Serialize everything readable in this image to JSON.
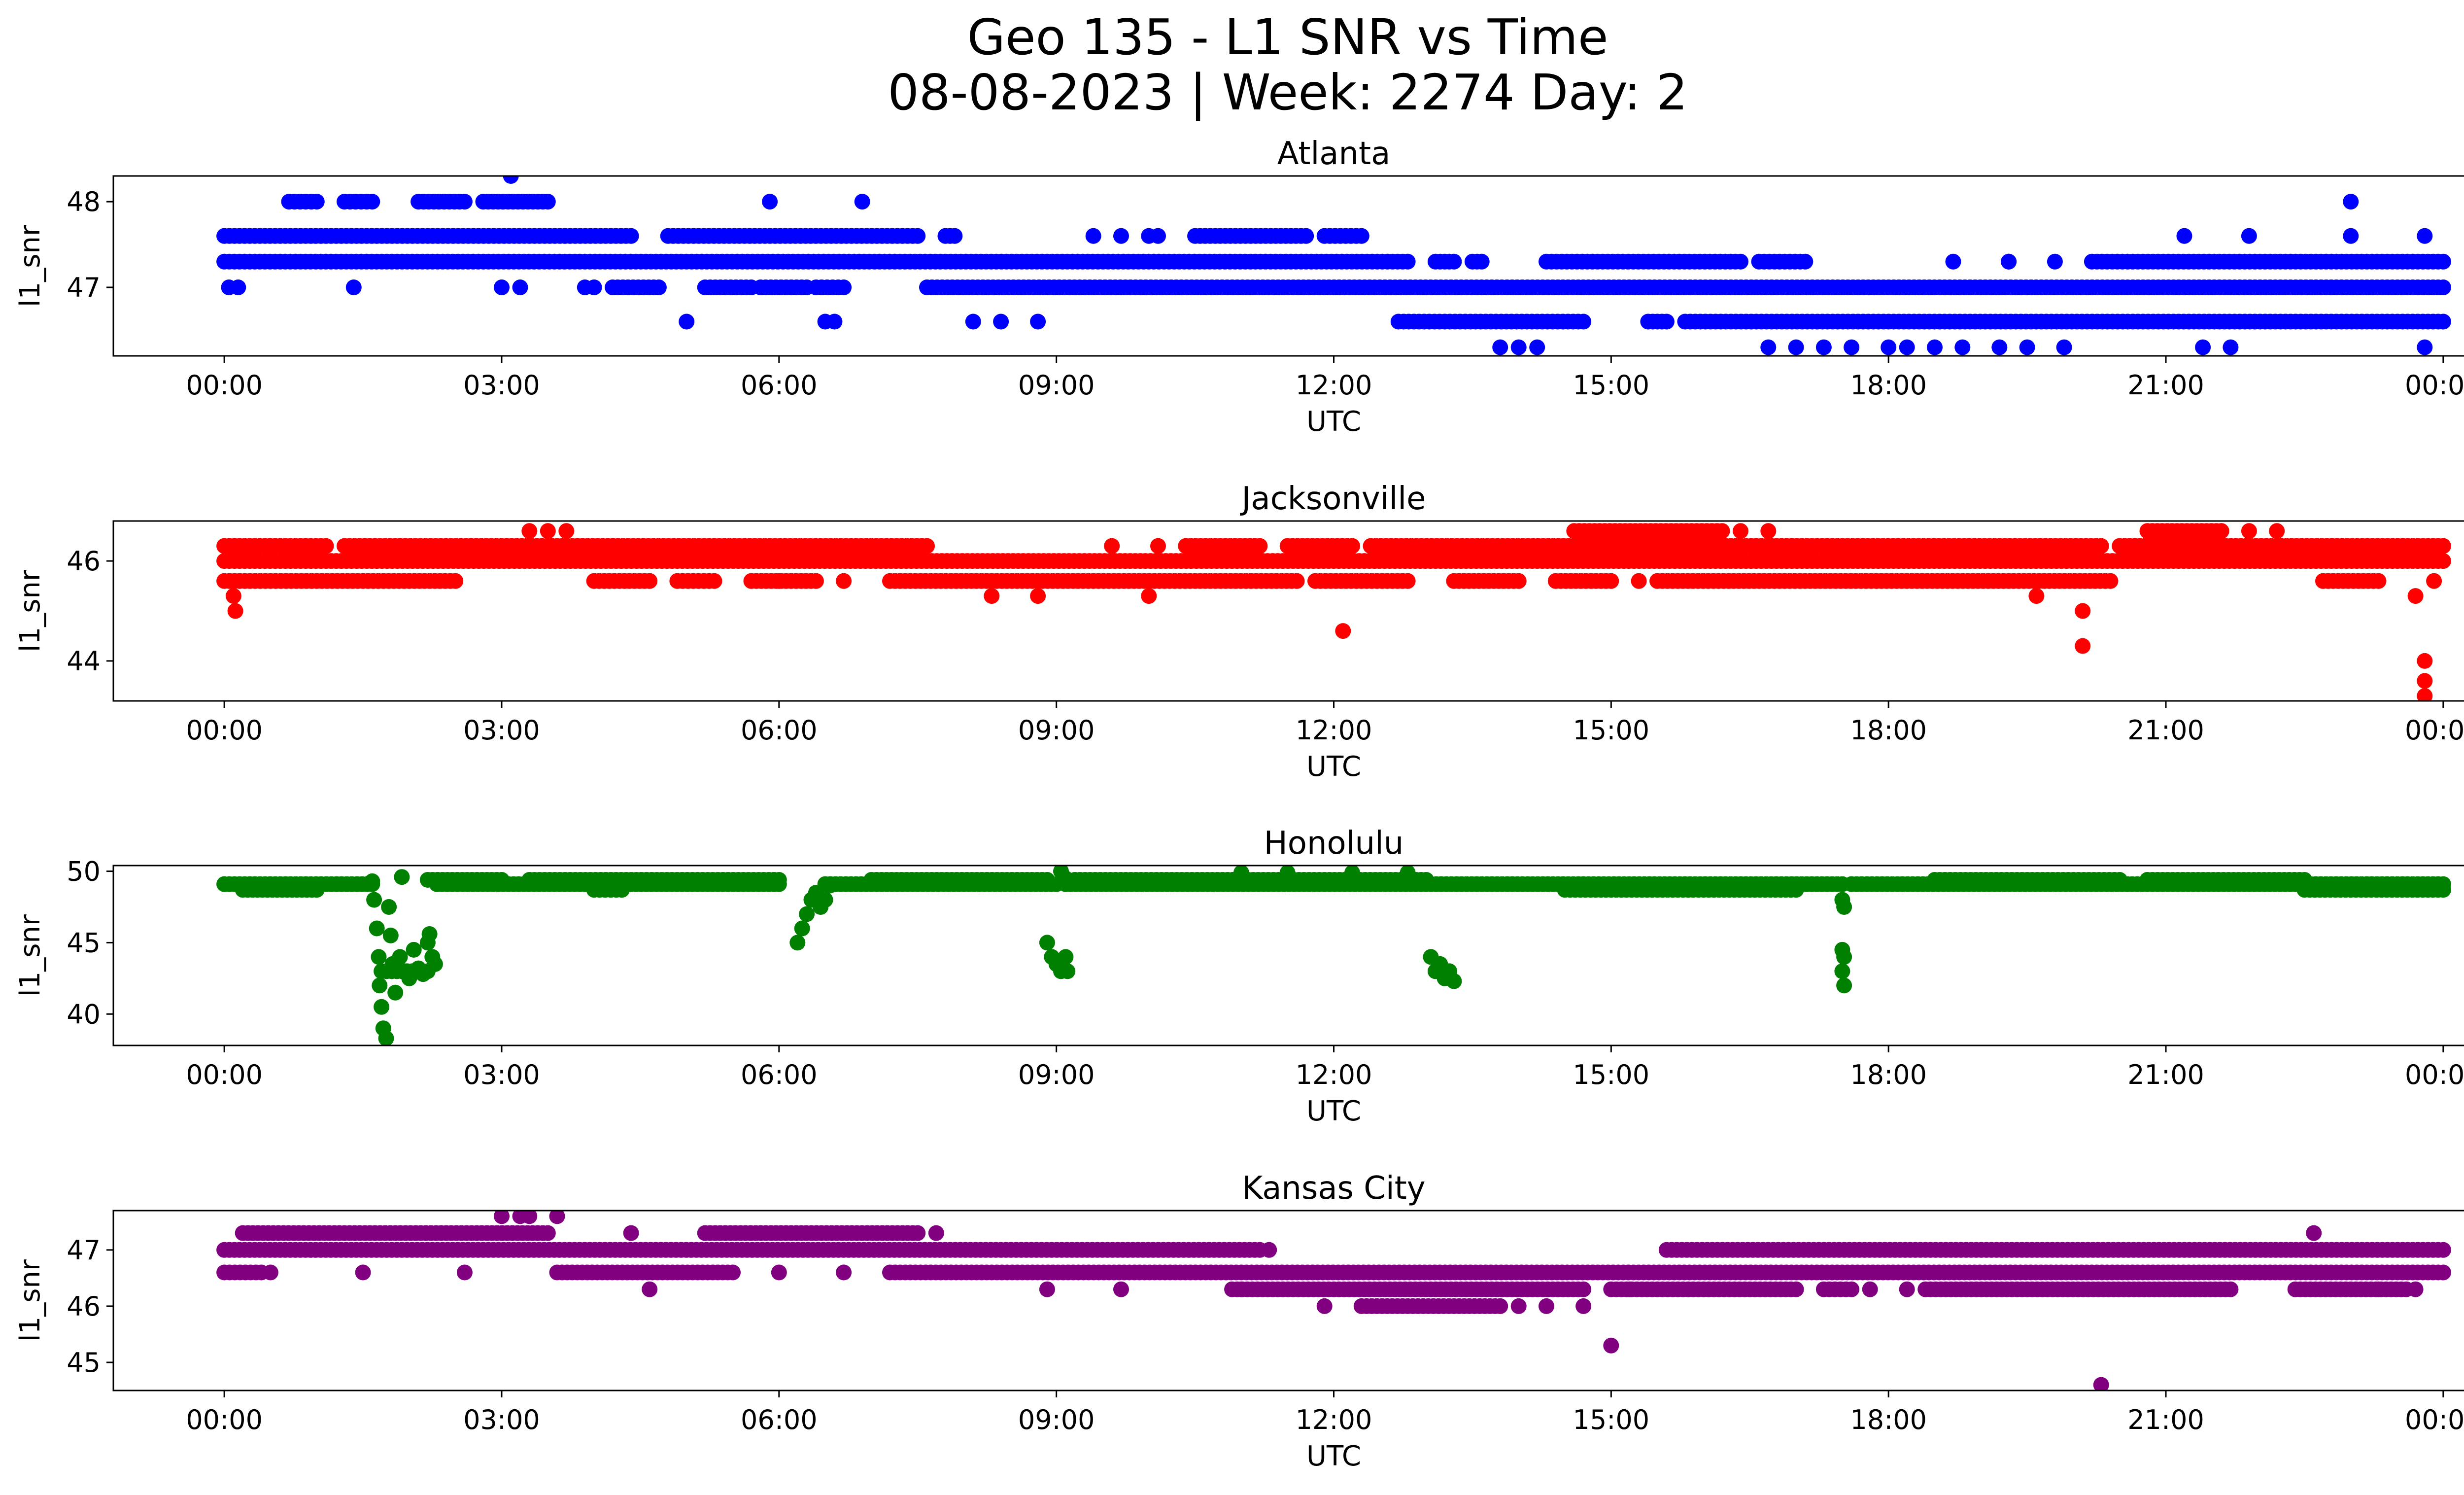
{
  "chart_data": {
    "type": "scatter",
    "title_line1": "Geo 135 - L1 SNR vs Time",
    "title_line2": "08-08-2023 | Week: 2274 Day: 2",
    "xlabel": "UTC",
    "ylabel": "l1_snr",
    "x_ticks": [
      "00:00",
      "03:00",
      "06:00",
      "09:00",
      "12:00",
      "15:00",
      "18:00",
      "21:00",
      "00:00"
    ],
    "xlim_hours": [
      -1.2,
      25.2
    ],
    "grid": false,
    "subplots": [
      {
        "name": "Atlanta",
        "color": "#0000ff",
        "ylim": [
          46.2,
          48.3
        ],
        "yticks": [
          47,
          48
        ],
        "bands": [
          {
            "y": 47.3,
            "segments": [
              [
                0,
                12.8
              ],
              [
                13.1,
                13.3
              ],
              [
                13.5,
                13.6
              ],
              [
                14.3,
                16.4
              ],
              [
                16.6,
                17.1
              ],
              [
                19.3,
                19.3
              ],
              [
                20.2,
                24
              ]
            ]
          },
          {
            "y": 47.6,
            "segments": [
              [
                0,
                4.4
              ],
              [
                4.8,
                7.5
              ],
              [
                7.8,
                7.9
              ],
              [
                10.5,
                11.7
              ],
              [
                11.9,
                12.3
              ]
            ]
          },
          {
            "y": 47.0,
            "segments": [
              [
                4.2,
                4.7
              ],
              [
                5.2,
                5.7
              ],
              [
                5.8,
                6.3
              ],
              [
                6.4,
                6.7
              ],
              [
                7.6,
                24
              ]
            ]
          },
          {
            "y": 46.6,
            "segments": [
              [
                12.7,
                14.7
              ],
              [
                15.4,
                15.6
              ],
              [
                15.8,
                24
              ]
            ]
          },
          {
            "y": 48.0,
            "segments": [
              [
                0.7,
                1.0
              ],
              [
                1.3,
                1.6
              ],
              [
                2.1,
                2.6
              ],
              [
                2.8,
                3.5
              ]
            ]
          }
        ],
        "points": [
          [
            0.05,
            47.0
          ],
          [
            0.15,
            47.0
          ],
          [
            1.4,
            47.0
          ],
          [
            3.0,
            47.0
          ],
          [
            3.2,
            47.0
          ],
          [
            3.9,
            47.0
          ],
          [
            4.0,
            47.0
          ],
          [
            3.1,
            48.3
          ],
          [
            5.9,
            48.0
          ],
          [
            6.9,
            48.0
          ],
          [
            9.4,
            47.6
          ],
          [
            9.7,
            47.6
          ],
          [
            10.0,
            47.6
          ],
          [
            10.1,
            47.6
          ],
          [
            5.0,
            46.6
          ],
          [
            6.5,
            46.6
          ],
          [
            6.6,
            46.6
          ],
          [
            8.1,
            46.6
          ],
          [
            8.4,
            46.6
          ],
          [
            8.8,
            46.6
          ],
          [
            13.8,
            46.3
          ],
          [
            14.0,
            46.3
          ],
          [
            14.2,
            46.3
          ],
          [
            16.7,
            46.3
          ],
          [
            17.0,
            46.3
          ],
          [
            17.3,
            46.3
          ],
          [
            17.6,
            46.3
          ],
          [
            18.0,
            46.3
          ],
          [
            18.2,
            46.3
          ],
          [
            18.5,
            46.3
          ],
          [
            18.8,
            46.3
          ],
          [
            19.2,
            46.3
          ],
          [
            19.5,
            46.3
          ],
          [
            19.9,
            46.3
          ],
          [
            21.4,
            46.3
          ],
          [
            21.7,
            46.3
          ],
          [
            23.8,
            46.3
          ],
          [
            18.7,
            47.3
          ],
          [
            19.8,
            47.3
          ],
          [
            21.2,
            47.6
          ],
          [
            21.9,
            47.6
          ],
          [
            23.0,
            48.0
          ],
          [
            23.0,
            47.6
          ],
          [
            23.8,
            47.6
          ]
        ]
      },
      {
        "name": "Jacksonville",
        "color": "#ff0000",
        "ylim": [
          43.2,
          46.8
        ],
        "yticks": [
          44,
          46
        ],
        "bands": [
          {
            "y": 46.0,
            "segments": [
              [
                0,
                24
              ]
            ]
          },
          {
            "y": 46.3,
            "segments": [
              [
                0,
                1.1
              ],
              [
                1.3,
                7.6
              ],
              [
                10.4,
                11.2
              ],
              [
                11.5,
                12.2
              ],
              [
                12.4,
                20.3
              ],
              [
                20.5,
                24
              ]
            ]
          },
          {
            "y": 45.6,
            "segments": [
              [
                0,
                2.5
              ],
              [
                4.0,
                4.6
              ],
              [
                4.9,
                5.3
              ],
              [
                5.7,
                6.4
              ],
              [
                7.2,
                11.6
              ],
              [
                11.8,
                12.8
              ],
              [
                13.3,
                14.0
              ],
              [
                14.4,
                15.0
              ],
              [
                15.5,
                20.4
              ],
              [
                22.7,
                23.3
              ]
            ]
          },
          {
            "y": 46.6,
            "segments": [
              [
                14.6,
                16.2
              ],
              [
                20.8,
                21.6
              ]
            ]
          }
        ],
        "points": [
          [
            0.1,
            45.3
          ],
          [
            0.12,
            45.0
          ],
          [
            3.3,
            46.6
          ],
          [
            3.5,
            46.6
          ],
          [
            3.7,
            46.6
          ],
          [
            16.4,
            46.6
          ],
          [
            16.7,
            46.6
          ],
          [
            21.6,
            46.6
          ],
          [
            21.9,
            46.6
          ],
          [
            22.2,
            46.6
          ],
          [
            8.3,
            45.3
          ],
          [
            8.8,
            45.3
          ],
          [
            10.0,
            45.3
          ],
          [
            9.6,
            46.3
          ],
          [
            10.1,
            46.3
          ],
          [
            15.3,
            45.6
          ],
          [
            12.1,
            44.6
          ],
          [
            19.6,
            45.3
          ],
          [
            20.1,
            45.0
          ],
          [
            20.1,
            44.3
          ],
          [
            23.7,
            45.3
          ],
          [
            23.8,
            44.0
          ],
          [
            23.8,
            43.6
          ],
          [
            23.8,
            43.3
          ],
          [
            23.9,
            45.6
          ],
          [
            6.0,
            45.6
          ],
          [
            6.7,
            45.6
          ]
        ]
      },
      {
        "name": "Honolulu",
        "color": "#008000",
        "ylim": [
          37.8,
          50.4
        ],
        "yticks": [
          40,
          45,
          50
        ],
        "bands": [
          {
            "y": 49.1,
            "segments": [
              [
                0,
                1.6
              ],
              [
                2.3,
                6.0
              ],
              [
                6.5,
                9.0
              ],
              [
                9.1,
                17.5
              ],
              [
                17.6,
                24
              ]
            ]
          },
          {
            "y": 48.7,
            "segments": [
              [
                0.2,
                1.0
              ],
              [
                4.0,
                4.3
              ],
              [
                14.5,
                17.0
              ],
              [
                22.5,
                24
              ]
            ]
          },
          {
            "y": 49.4,
            "segments": [
              [
                2.2,
                3.0
              ],
              [
                3.3,
                6.0
              ],
              [
                7.0,
                8.9
              ],
              [
                9.2,
                13.0
              ],
              [
                18.5,
                20.5
              ],
              [
                20.8,
                22.5
              ]
            ]
          },
          {
            "y": 43.0,
            "segments": [
              [
                1.7,
                2.2
              ]
            ]
          }
        ],
        "points": [
          [
            1.6,
            49.3
          ],
          [
            1.62,
            48.0
          ],
          [
            1.65,
            46.0
          ],
          [
            1.67,
            44.0
          ],
          [
            1.68,
            42.0
          ],
          [
            1.7,
            40.5
          ],
          [
            1.72,
            39.0
          ],
          [
            1.75,
            38.3
          ],
          [
            1.78,
            47.5
          ],
          [
            1.8,
            45.5
          ],
          [
            1.82,
            43.5
          ],
          [
            1.85,
            41.5
          ],
          [
            1.9,
            44.0
          ],
          [
            1.95,
            43.0
          ],
          [
            2.0,
            42.5
          ],
          [
            2.05,
            44.5
          ],
          [
            2.1,
            43.2
          ],
          [
            2.15,
            42.8
          ],
          [
            2.2,
            45.0
          ],
          [
            2.22,
            45.6
          ],
          [
            2.25,
            44.0
          ],
          [
            2.28,
            43.5
          ],
          [
            1.92,
            49.6
          ],
          [
            6.2,
            45.0
          ],
          [
            6.25,
            46.0
          ],
          [
            6.3,
            47.0
          ],
          [
            6.35,
            48.0
          ],
          [
            6.4,
            48.5
          ],
          [
            6.45,
            47.5
          ],
          [
            6.5,
            48.0
          ],
          [
            6.55,
            49.0
          ],
          [
            8.9,
            45.0
          ],
          [
            8.95,
            44.0
          ],
          [
            9.0,
            43.5
          ],
          [
            9.05,
            43.0
          ],
          [
            9.1,
            44.0
          ],
          [
            9.12,
            43.0
          ],
          [
            9.05,
            50.0
          ],
          [
            9.1,
            49.5
          ],
          [
            13.05,
            44.0
          ],
          [
            13.1,
            43.0
          ],
          [
            13.15,
            43.5
          ],
          [
            13.2,
            42.5
          ],
          [
            13.25,
            43.0
          ],
          [
            13.3,
            42.3
          ],
          [
            17.5,
            44.5
          ],
          [
            17.52,
            44.0
          ],
          [
            17.5,
            43.0
          ],
          [
            17.52,
            42.0
          ],
          [
            17.5,
            48.0
          ],
          [
            17.52,
            47.5
          ],
          [
            11.0,
            49.9
          ],
          [
            11.5,
            49.9
          ],
          [
            12.2,
            49.9
          ],
          [
            12.8,
            49.9
          ]
        ]
      },
      {
        "name": "Kansas City",
        "color": "#800080",
        "ylim": [
          44.5,
          47.7
        ],
        "yticks": [
          45,
          46,
          47
        ],
        "bands": [
          {
            "y": 47.0,
            "segments": [
              [
                0,
                11.2
              ],
              [
                15.6,
                24
              ]
            ]
          },
          {
            "y": 47.3,
            "segments": [
              [
                0.2,
                3.5
              ],
              [
                5.2,
                7.5
              ]
            ]
          },
          {
            "y": 46.6,
            "segments": [
              [
                0,
                0.4
              ],
              [
                3.6,
                5.5
              ],
              [
                7.2,
                24
              ]
            ]
          },
          {
            "y": 46.3,
            "segments": [
              [
                10.9,
                14.7
              ],
              [
                15.0,
                17.0
              ],
              [
                17.3,
                17.6
              ],
              [
                18.4,
                21.7
              ],
              [
                22.4,
                23.6
              ]
            ]
          },
          {
            "y": 46.0,
            "segments": [
              [
                12.3,
                13.8
              ]
            ]
          }
        ],
        "points": [
          [
            0.5,
            46.6
          ],
          [
            1.5,
            46.6
          ],
          [
            2.6,
            46.6
          ],
          [
            6.0,
            46.6
          ],
          [
            6.7,
            46.6
          ],
          [
            8.9,
            46.3
          ],
          [
            9.7,
            46.3
          ],
          [
            11.3,
            47.0
          ],
          [
            11.0,
            46.3
          ],
          [
            11.9,
            46.0
          ],
          [
            14.0,
            46.0
          ],
          [
            14.3,
            46.0
          ],
          [
            14.7,
            46.0
          ],
          [
            15.0,
            45.3
          ],
          [
            20.3,
            44.6
          ],
          [
            3.0,
            47.6
          ],
          [
            3.2,
            47.6
          ],
          [
            3.3,
            47.6
          ],
          [
            3.6,
            47.6
          ],
          [
            4.4,
            47.3
          ],
          [
            7.7,
            47.3
          ],
          [
            4.6,
            46.3
          ],
          [
            22.6,
            47.3
          ],
          [
            23.3,
            46.3
          ],
          [
            23.7,
            46.3
          ],
          [
            17.8,
            46.3
          ],
          [
            18.2,
            46.3
          ],
          [
            15.2,
            46.3
          ]
        ]
      }
    ]
  }
}
